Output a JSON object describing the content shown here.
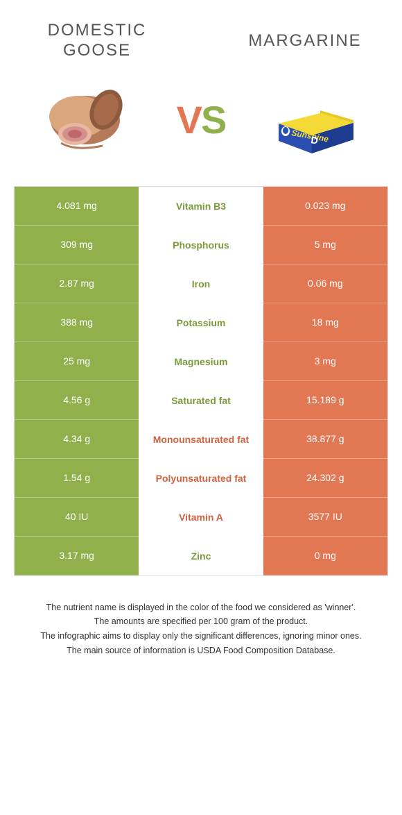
{
  "colors": {
    "green": "#8fb04a",
    "orange": "#e27753",
    "nutrient_green": "#7a9a3c",
    "nutrient_orange": "#d1623f"
  },
  "header": {
    "left": "Domestic Goose",
    "right": "Margarine",
    "vs_v": "V",
    "vs_s": "S"
  },
  "rows": [
    {
      "left": "4.081 mg",
      "nutrient": "Vitamin B3",
      "right": "0.023 mg",
      "winner": "left"
    },
    {
      "left": "309 mg",
      "nutrient": "Phosphorus",
      "right": "5 mg",
      "winner": "left"
    },
    {
      "left": "2.87 mg",
      "nutrient": "Iron",
      "right": "0.06 mg",
      "winner": "left"
    },
    {
      "left": "388 mg",
      "nutrient": "Potassium",
      "right": "18 mg",
      "winner": "left"
    },
    {
      "left": "25 mg",
      "nutrient": "Magnesium",
      "right": "3 mg",
      "winner": "left"
    },
    {
      "left": "4.56 g",
      "nutrient": "Saturated fat",
      "right": "15.189 g",
      "winner": "left"
    },
    {
      "left": "4.34 g",
      "nutrient": "Monounsaturated fat",
      "right": "38.877 g",
      "winner": "right"
    },
    {
      "left": "1.54 g",
      "nutrient": "Polyunsaturated fat",
      "right": "24.302 g",
      "winner": "right"
    },
    {
      "left": "40 IU",
      "nutrient": "Vitamin A",
      "right": "3577 IU",
      "winner": "right"
    },
    {
      "left": "3.17 mg",
      "nutrient": "Zinc",
      "right": "0 mg",
      "winner": "left"
    }
  ],
  "footer": [
    "The nutrient name is displayed in the color of the food we considered as 'winner'.",
    "The amounts are specified per 100 gram of the product.",
    "The infographic aims to display only the significant differences, ignoring minor ones.",
    "The main source of information is USDA Food Composition Database."
  ]
}
